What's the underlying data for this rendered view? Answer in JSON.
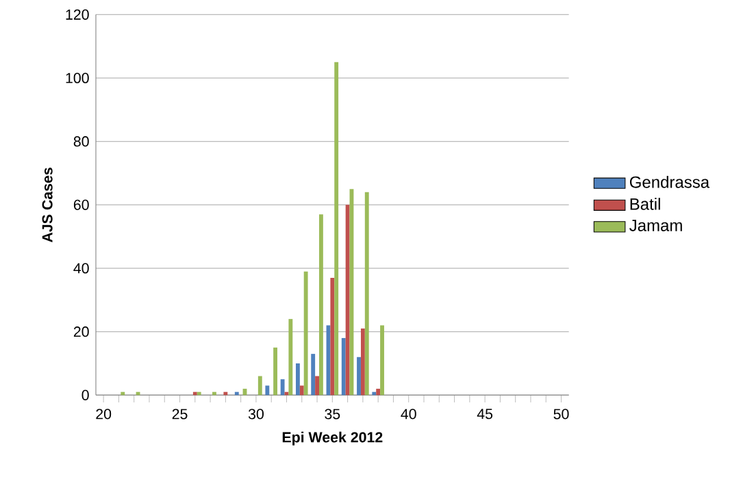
{
  "chart_data": {
    "type": "bar",
    "xlabel": "Epi Week 2012",
    "ylabel": "AJS Cases",
    "categories": [
      "20",
      null,
      null,
      null,
      null,
      "25",
      null,
      null,
      null,
      null,
      "30",
      null,
      null,
      null,
      null,
      "35",
      null,
      null,
      null,
      null,
      "40",
      null,
      null,
      null,
      null,
      "45",
      null,
      null,
      null,
      null,
      "50"
    ],
    "series": [
      {
        "name": "Gendrassa",
        "color": "#4f81bd",
        "values": [
          0,
          0,
          0,
          0,
          0,
          0,
          0,
          0,
          0,
          1,
          0,
          3,
          5,
          10,
          13,
          22,
          18,
          12,
          1,
          0,
          0,
          0,
          0,
          0,
          0,
          0,
          0,
          0,
          0,
          0,
          0
        ]
      },
      {
        "name": "Batil",
        "color": "#c0504d",
        "values": [
          0,
          0,
          0,
          0,
          0,
          0,
          1,
          0,
          1,
          0,
          0,
          0,
          1,
          3,
          6,
          37,
          60,
          21,
          2,
          0,
          0,
          0,
          0,
          0,
          0,
          0,
          0,
          0,
          0,
          0,
          0
        ]
      },
      {
        "name": "Jamam",
        "color": "#9bbb59",
        "values": [
          0,
          1,
          1,
          0,
          0,
          0,
          1,
          1,
          0,
          2,
          6,
          15,
          24,
          39,
          57,
          105,
          65,
          64,
          22,
          0,
          0,
          0,
          0,
          0,
          0,
          0,
          0,
          0,
          0,
          0,
          0
        ]
      }
    ],
    "ylim": [
      0,
      120
    ],
    "yticks": [
      0,
      20,
      40,
      60,
      80,
      100,
      120
    ],
    "grid": "y",
    "legend": "right"
  }
}
